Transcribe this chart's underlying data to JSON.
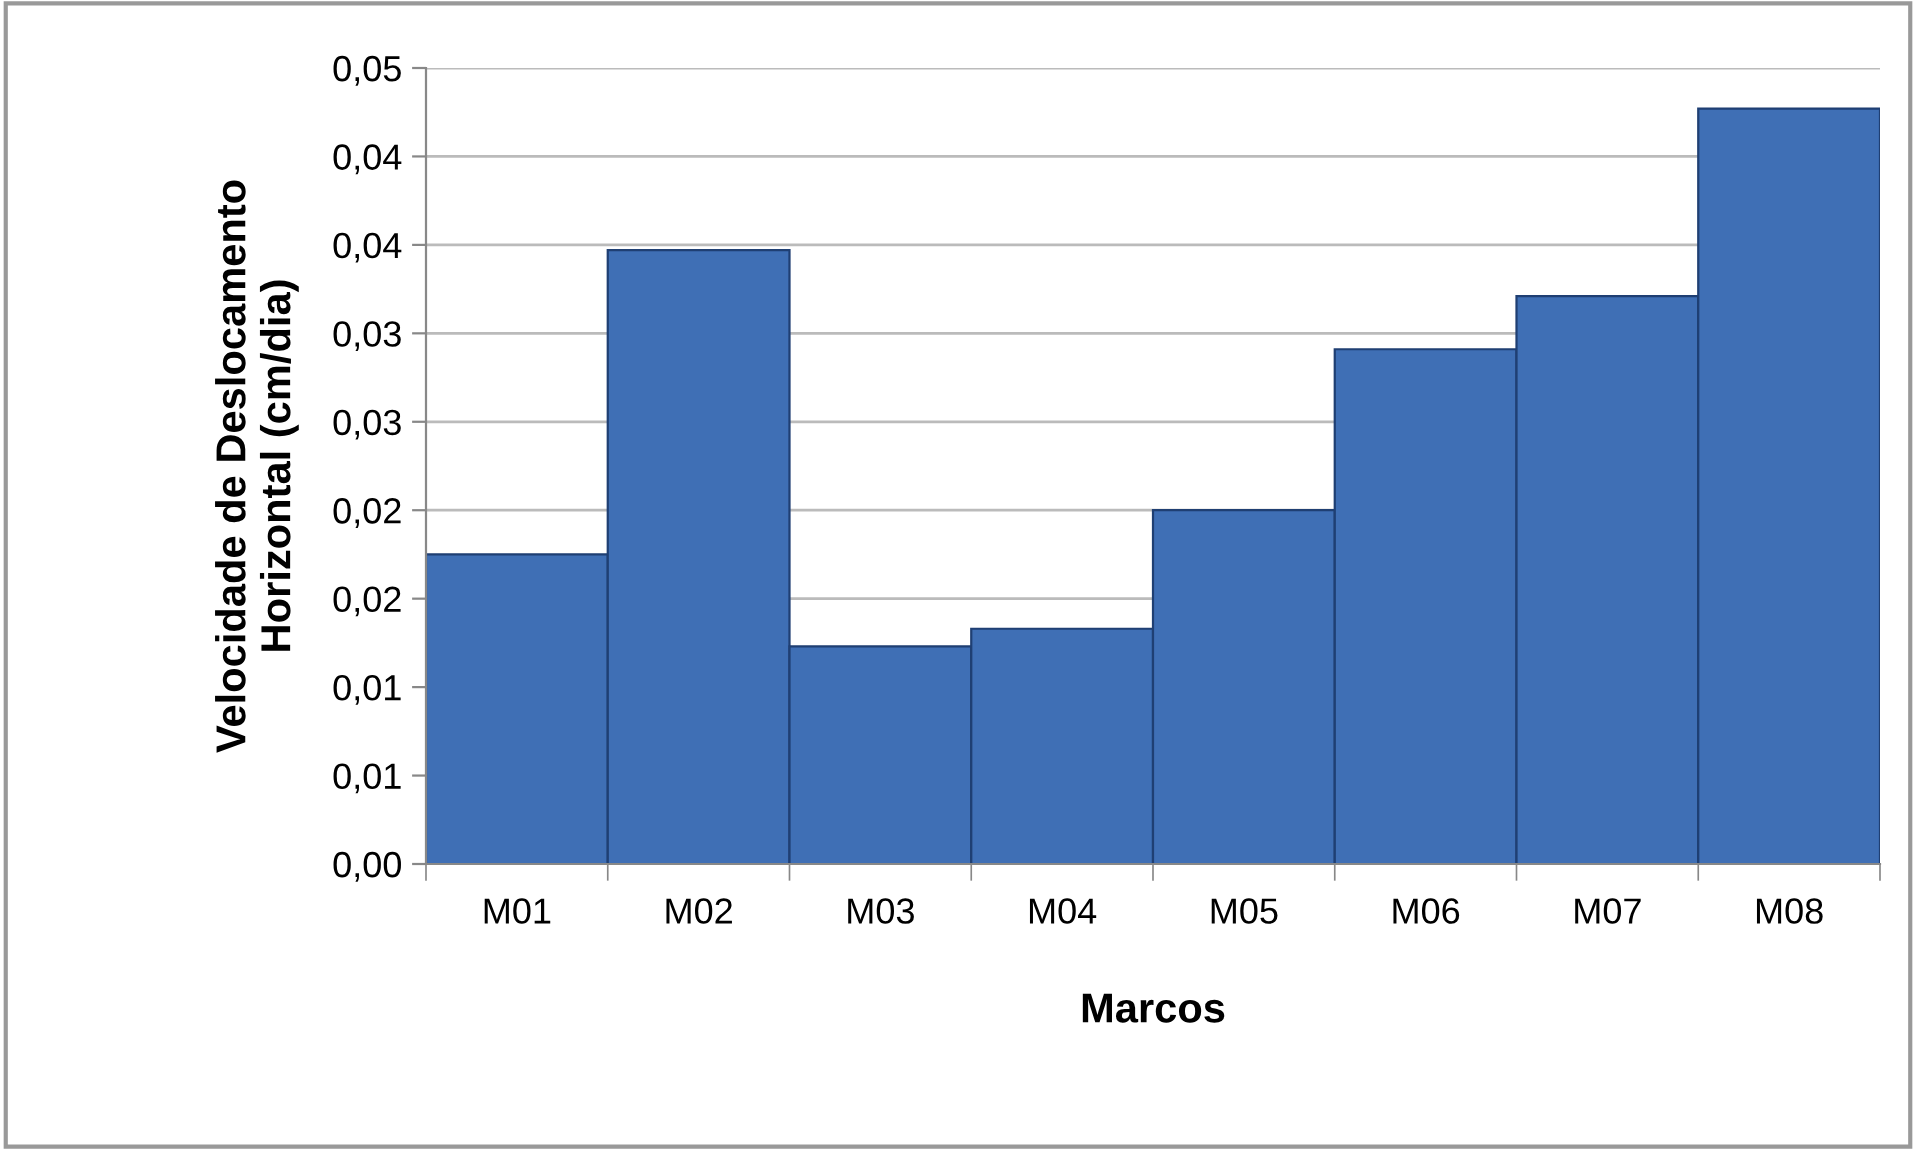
{
  "chart_data": {
    "type": "bar",
    "xlabel": "Marcos",
    "ylabel": "Velocidade de Deslocamento\nHorizontal (cm/dia)",
    "categories": [
      "M01",
      "M02",
      "M03",
      "M04",
      "M05",
      "M06",
      "M07",
      "M08"
    ],
    "values": [
      0.0175,
      0.0347,
      0.0123,
      0.0133,
      0.02,
      0.0291,
      0.0321,
      0.0427
    ],
    "color": "#3f6fb5",
    "ylim": [
      0,
      0.045
    ],
    "yticks": [
      {
        "value": 0,
        "label": "0,00"
      },
      {
        "value": 0.005,
        "label": "0,01"
      },
      {
        "value": 0.01,
        "label": "0,01"
      },
      {
        "value": 0.015,
        "label": "0,02"
      },
      {
        "value": 0.02,
        "label": "0,02"
      },
      {
        "value": 0.025,
        "label": "0,03"
      },
      {
        "value": 0.03,
        "label": "0,03"
      },
      {
        "value": 0.035,
        "label": "0,04"
      },
      {
        "value": 0.04,
        "label": "0,04"
      },
      {
        "value": 0.045,
        "label": "0,05"
      }
    ],
    "grid": "y",
    "legend": false
  }
}
